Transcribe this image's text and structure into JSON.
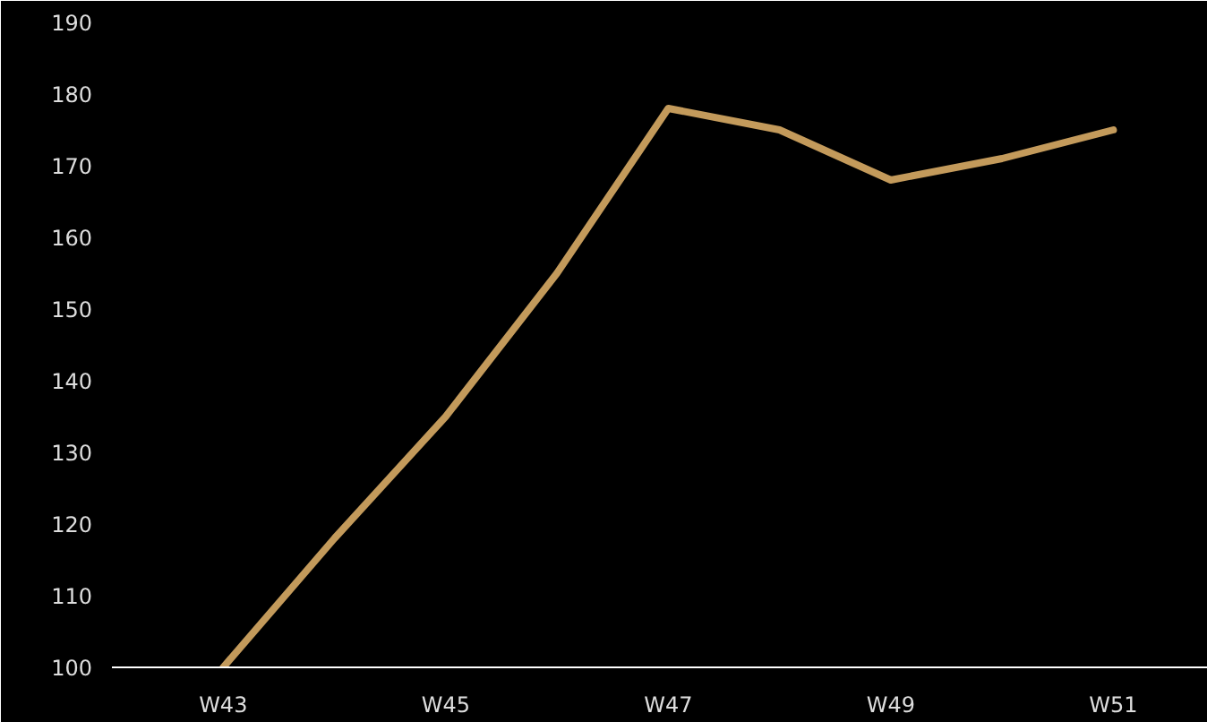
{
  "chart_data": {
    "type": "line",
    "categories": [
      "W43",
      null,
      "W45",
      null,
      "W47",
      null,
      "W49",
      null,
      "W51"
    ],
    "series": [
      {
        "color": "#c39a5b",
        "values": [
          100,
          118,
          135,
          155,
          178,
          175,
          168,
          171,
          175
        ]
      }
    ],
    "ylim": [
      100,
      190
    ],
    "yticks": [
      100,
      110,
      120,
      130,
      140,
      150,
      160,
      170,
      180,
      190
    ],
    "grid": false,
    "marker": "none",
    "line_style": "solid"
  }
}
